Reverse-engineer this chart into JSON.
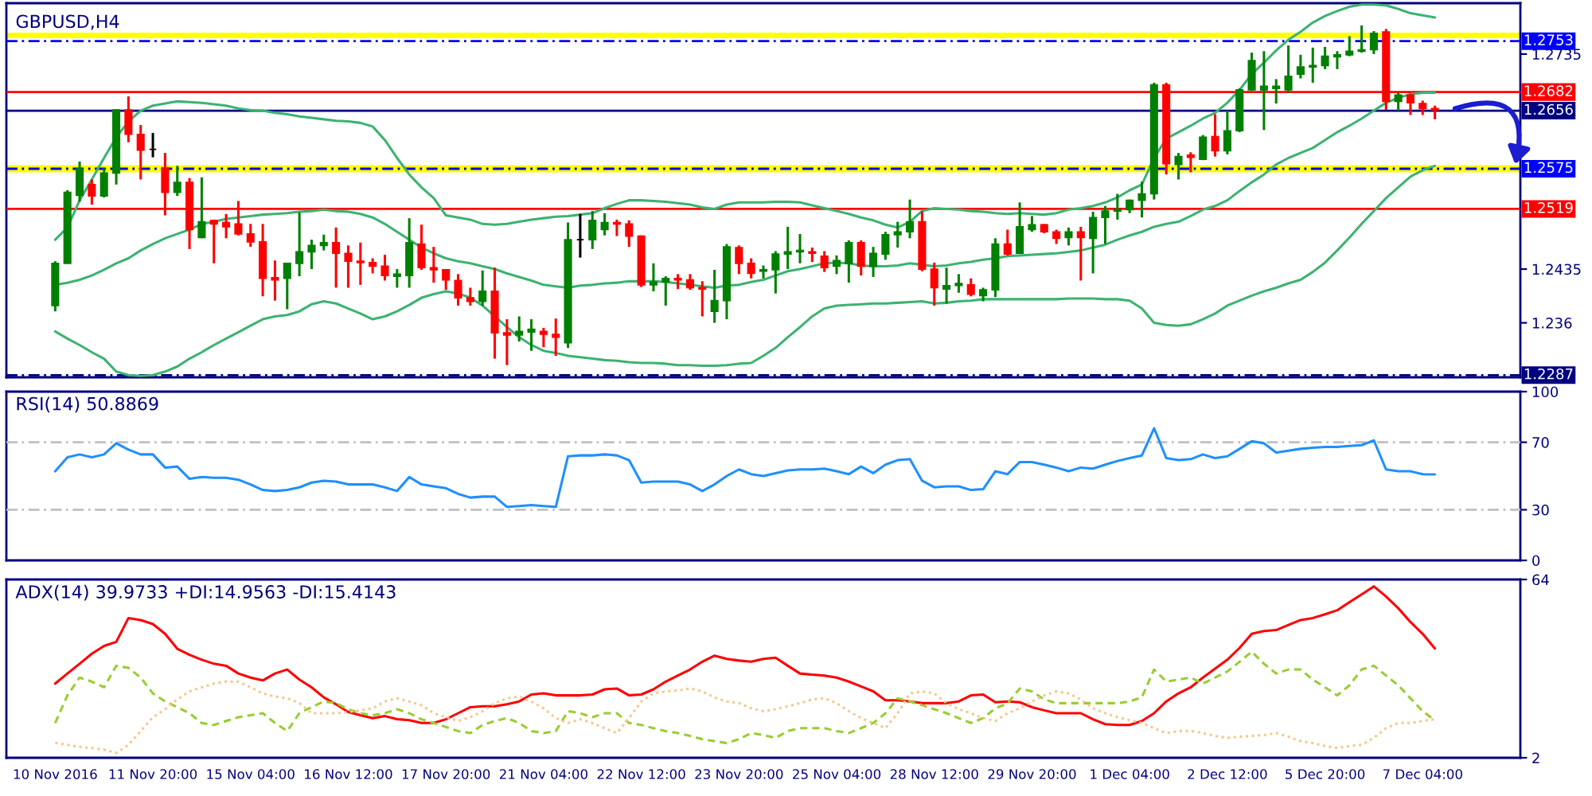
{
  "chart_data": [
    {
      "type": "candlestick",
      "title": "GBPUSD,H4",
      "categories": [
        null,
        null,
        null,
        null,
        null,
        null,
        null,
        null,
        null,
        null,
        null,
        null,
        null,
        null,
        null,
        null,
        null,
        null,
        null,
        null,
        null,
        null,
        null,
        null,
        null,
        null,
        null,
        null,
        null,
        null,
        null,
        null,
        null,
        null,
        null,
        null,
        null,
        null,
        null,
        null,
        null,
        null,
        null,
        null,
        null,
        null,
        null,
        null,
        null,
        null,
        null,
        null,
        null,
        null,
        null,
        null,
        null,
        null,
        null,
        null,
        null,
        null,
        null,
        null,
        null,
        null,
        null,
        null,
        null,
        null,
        null,
        null,
        null,
        null,
        null,
        null,
        null,
        null,
        null,
        null,
        null,
        null,
        null,
        null,
        null,
        null,
        null,
        null,
        null,
        null,
        null,
        null,
        null,
        null,
        null,
        null,
        null,
        null,
        null,
        null,
        null,
        null,
        null,
        null,
        null,
        null,
        null,
        null,
        null,
        null,
        null,
        null,
        null,
        null
      ],
      "ohlc": [
        [
          1.2384,
          1.2446,
          1.2376,
          1.2443
        ],
        [
          1.2443,
          1.2545,
          1.2443,
          1.2542
        ],
        [
          1.2538,
          1.2585,
          1.2529,
          1.2575
        ],
        [
          1.2553,
          1.256,
          1.2525,
          1.2537
        ],
        [
          1.2537,
          1.2576,
          1.2535,
          1.2569
        ],
        [
          1.2569,
          1.2658,
          1.2553,
          1.2657
        ],
        [
          1.2657,
          1.2676,
          1.2612,
          1.2623
        ],
        [
          1.2623,
          1.2636,
          1.256,
          1.2601
        ],
        [
          1.2602,
          1.2625,
          1.2591,
          1.2602
        ],
        [
          1.2576,
          1.2597,
          1.251,
          1.2542
        ],
        [
          1.2542,
          1.2579,
          1.2537,
          1.2556
        ],
        [
          1.2556,
          1.2562,
          1.2463,
          1.249
        ],
        [
          1.2479,
          1.2563,
          1.2478,
          1.2501
        ],
        [
          1.2503,
          1.2504,
          1.2443,
          1.2498
        ],
        [
          1.25,
          1.2512,
          1.2478,
          1.2494
        ],
        [
          1.2498,
          1.253,
          1.2482,
          1.2484
        ],
        [
          1.2484,
          1.2498,
          1.2466,
          1.2473
        ],
        [
          1.2473,
          1.2498,
          1.2397,
          1.2422
        ],
        [
          1.2423,
          1.2447,
          1.2391,
          1.242
        ],
        [
          1.2422,
          1.2444,
          1.2379,
          1.2443
        ],
        [
          1.2443,
          1.2514,
          1.2425,
          1.2459
        ],
        [
          1.2459,
          1.2476,
          1.2435,
          1.2468
        ],
        [
          1.2468,
          1.2483,
          1.2461,
          1.2472
        ],
        [
          1.2472,
          1.2493,
          1.2409,
          1.2457
        ],
        [
          1.2457,
          1.2468,
          1.2409,
          1.2446
        ],
        [
          1.2446,
          1.2472,
          1.2413,
          1.2444
        ],
        [
          1.2444,
          1.245,
          1.2429,
          1.2439
        ],
        [
          1.2439,
          1.2455,
          1.2419,
          1.2426
        ],
        [
          1.2425,
          1.2435,
          1.2409,
          1.2428
        ],
        [
          1.2426,
          1.2506,
          1.2409,
          1.2472
        ],
        [
          1.247,
          1.2497,
          1.2434,
          1.2437
        ],
        [
          1.2437,
          1.2466,
          1.2416,
          1.2434
        ],
        [
          1.2434,
          1.2435,
          1.2406,
          1.242
        ],
        [
          1.2419,
          1.2428,
          1.2384,
          1.2395
        ],
        [
          1.2395,
          1.2409,
          1.2384,
          1.239
        ],
        [
          1.239,
          1.2433,
          1.2384,
          1.2404
        ],
        [
          1.2404,
          1.2437,
          1.231,
          1.2346
        ],
        [
          1.2346,
          1.2365,
          1.2301,
          1.2343
        ],
        [
          1.2343,
          1.2369,
          1.2334,
          1.2348
        ],
        [
          1.2347,
          1.2365,
          1.2321,
          1.2351
        ],
        [
          1.2348,
          1.2353,
          1.2326,
          1.2344
        ],
        [
          1.2344,
          1.2366,
          1.2314,
          1.234
        ],
        [
          1.2332,
          1.25,
          1.2325,
          1.2476
        ],
        [
          1.2476,
          1.2512,
          1.2451,
          1.2476
        ],
        [
          1.2476,
          1.2516,
          1.2463,
          1.2503
        ],
        [
          1.249,
          1.2513,
          1.2482,
          1.25
        ],
        [
          1.25,
          1.2504,
          1.2481,
          1.2498
        ],
        [
          1.2498,
          1.2503,
          1.2466,
          1.2481
        ],
        [
          1.2481,
          1.2482,
          1.241,
          1.2413
        ],
        [
          1.2413,
          1.2443,
          1.2404,
          1.2417
        ],
        [
          1.2417,
          1.2425,
          1.2384,
          1.2422
        ],
        [
          1.2422,
          1.2428,
          1.2407,
          1.242
        ],
        [
          1.242,
          1.2428,
          1.2406,
          1.2409
        ],
        [
          1.2409,
          1.2418,
          1.2369,
          1.2407
        ],
        [
          1.2376,
          1.2434,
          1.236,
          1.2391
        ],
        [
          1.2391,
          1.247,
          1.2365,
          1.2466
        ],
        [
          1.2465,
          1.2468,
          1.2428,
          1.2443
        ],
        [
          1.2443,
          1.245,
          1.2422,
          1.2429
        ],
        [
          1.2432,
          1.244,
          1.2422,
          1.2434
        ],
        [
          1.2434,
          1.246,
          1.2401,
          1.2456
        ],
        [
          1.2456,
          1.2494,
          1.2435,
          1.2459
        ],
        [
          1.2459,
          1.2484,
          1.2443,
          1.2461
        ],
        [
          1.2459,
          1.2465,
          1.2445,
          1.2457
        ],
        [
          1.2453,
          1.246,
          1.2431,
          1.2437
        ],
        [
          1.2439,
          1.2454,
          1.2428,
          1.2447
        ],
        [
          1.2443,
          1.2475,
          1.2416,
          1.2472
        ],
        [
          1.2472,
          1.2475,
          1.2426,
          1.2439
        ],
        [
          1.2439,
          1.2466,
          1.2424,
          1.2457
        ],
        [
          1.2456,
          1.2487,
          1.2448,
          1.2483
        ],
        [
          1.2483,
          1.2501,
          1.2465,
          1.2487
        ],
        [
          1.2487,
          1.2532,
          1.2478,
          1.2501
        ],
        [
          1.2501,
          1.2516,
          1.2432,
          1.2435
        ],
        [
          1.2435,
          1.2444,
          1.2384,
          1.2409
        ],
        [
          1.2407,
          1.2437,
          1.2387,
          1.2412
        ],
        [
          1.2412,
          1.2428,
          1.2402,
          1.2415
        ],
        [
          1.2413,
          1.2422,
          1.2397,
          1.24
        ],
        [
          1.2398,
          1.2409,
          1.239,
          1.2406
        ],
        [
          1.2406,
          1.2478,
          1.2396,
          1.247
        ],
        [
          1.247,
          1.249,
          1.2454,
          1.2456
        ],
        [
          1.2457,
          1.2528,
          1.2456,
          1.2494
        ],
        [
          1.249,
          1.2509,
          1.2487,
          1.2497
        ],
        [
          1.2497,
          1.2498,
          1.2485,
          1.2487
        ],
        [
          1.2487,
          1.249,
          1.247,
          1.2478
        ],
        [
          1.2479,
          1.2493,
          1.2468,
          1.2487
        ],
        [
          1.2487,
          1.2494,
          1.2419,
          1.2479
        ],
        [
          1.2478,
          1.2515,
          1.2429,
          1.2507
        ],
        [
          1.2507,
          1.2523,
          1.247,
          1.2516
        ],
        [
          1.2516,
          1.254,
          1.2504,
          1.2518
        ],
        [
          1.2518,
          1.2532,
          1.2513,
          1.2531
        ],
        [
          1.2531,
          1.2557,
          1.2507,
          1.254
        ],
        [
          1.254,
          1.2695,
          1.2532,
          1.2692
        ],
        [
          1.2692,
          1.2695,
          1.2567,
          1.2582
        ],
        [
          1.2581,
          1.2597,
          1.256,
          1.2592
        ],
        [
          1.2594,
          1.2598,
          1.257,
          1.2591
        ],
        [
          1.2588,
          1.2622,
          1.2587,
          1.2619
        ],
        [
          1.262,
          1.2651,
          1.2592,
          1.26
        ],
        [
          1.26,
          1.2656,
          1.2595,
          1.2628
        ],
        [
          1.2628,
          1.2687,
          1.2626,
          1.2685
        ],
        [
          1.2685,
          1.2737,
          1.2684,
          1.2726
        ],
        [
          1.2685,
          1.2739,
          1.2629,
          1.269
        ],
        [
          1.2687,
          1.27,
          1.2666,
          1.269
        ],
        [
          1.2685,
          1.2747,
          1.2681,
          1.2704
        ],
        [
          1.2707,
          1.2734,
          1.2701,
          1.2717
        ],
        [
          1.2717,
          1.2744,
          1.2695,
          1.2719
        ],
        [
          1.2719,
          1.2745,
          1.2714,
          1.2732
        ],
        [
          1.2731,
          1.2739,
          1.2714,
          1.2734
        ],
        [
          1.2734,
          1.276,
          1.2732,
          1.2739
        ],
        [
          1.2739,
          1.2775,
          1.2737,
          1.2741
        ],
        [
          1.2741,
          1.2767,
          1.2735,
          1.2764
        ],
        [
          1.2766,
          1.277,
          1.2657,
          1.2669
        ],
        [
          1.2669,
          1.2681,
          1.2656,
          1.2678
        ],
        [
          1.2678,
          1.2679,
          1.265,
          1.2667
        ],
        [
          1.2666,
          1.267,
          1.265,
          1.2659
        ],
        [
          1.2659,
          1.2663,
          1.2644,
          1.2657
        ]
      ],
      "colors": [
        "#008000",
        "#008000",
        "#008000",
        "#ff0000",
        "#008000",
        "#008000",
        "#ff0000",
        "#ff0000",
        "#000000",
        "#ff0000",
        "#008000",
        "#ff0000",
        "#008000",
        "#ff0000",
        "#ff0000",
        "#ff0000",
        "#ff0000",
        "#ff0000",
        "#ff0000",
        "#008000",
        "#008000",
        "#008000",
        "#008000",
        "#ff0000",
        "#ff0000",
        "#ff0000",
        "#ff0000",
        "#ff0000",
        "#008000",
        "#008000",
        "#ff0000",
        "#ff0000",
        "#ff0000",
        "#ff0000",
        "#ff0000",
        "#008000",
        "#ff0000",
        "#ff0000",
        "#008000",
        "#008000",
        "#ff0000",
        "#ff0000",
        "#008000",
        "#000000",
        "#008000",
        "#008000",
        "#ff0000",
        "#ff0000",
        "#ff0000",
        "#008000",
        "#008000",
        "#ff0000",
        "#ff0000",
        "#ff0000",
        "#008000",
        "#008000",
        "#ff0000",
        "#ff0000",
        "#008000",
        "#008000",
        "#008000",
        "#008000",
        "#ff0000",
        "#ff0000",
        "#008000",
        "#008000",
        "#ff0000",
        "#008000",
        "#008000",
        "#008000",
        "#008000",
        "#ff0000",
        "#ff0000",
        "#008000",
        "#008000",
        "#ff0000",
        "#008000",
        "#008000",
        "#ff0000",
        "#008000",
        "#008000",
        "#ff0000",
        "#ff0000",
        "#008000",
        "#ff0000",
        "#008000",
        "#008000",
        "#008000",
        "#008000",
        "#008000",
        "#008000",
        "#ff0000",
        "#008000",
        "#ff0000",
        "#008000",
        "#ff0000",
        "#008000",
        "#008000",
        "#008000",
        "#008000",
        "#008000",
        "#008000",
        "#008000",
        "#008000",
        "#008000",
        "#008000",
        "#008000",
        "#008000",
        "#008000",
        "#ff0000",
        "#008000",
        "#ff0000",
        "#ff0000",
        "#ff0000"
      ],
      "series": [
        {
          "type": "line",
          "color": "#3cb371",
          "values": [
            1.2476,
            1.2493,
            1.2531,
            1.256,
            1.259,
            1.2619,
            1.2641,
            1.2656,
            1.2663,
            1.2666,
            1.2669,
            1.2668,
            1.2667,
            1.2665,
            1.2663,
            1.2659,
            1.2657,
            1.2656,
            1.2653,
            1.2651,
            1.2648,
            1.2646,
            1.2644,
            1.2642,
            1.2641,
            1.2639,
            1.2634,
            1.2615,
            1.259,
            1.2567,
            1.2549,
            1.2534,
            1.251,
            1.2507,
            1.2504,
            1.2498,
            1.2497,
            1.2498,
            1.2501,
            1.2504,
            1.2506,
            1.2508,
            1.2509,
            1.2511,
            1.2513,
            1.252,
            1.2526,
            1.2531,
            1.2531,
            1.253,
            1.2529,
            1.2527,
            1.2525,
            1.2521,
            1.2519,
            1.2525,
            1.2528,
            1.2528,
            1.2528,
            1.2529,
            1.2529,
            1.2528,
            1.2524,
            1.252,
            1.2516,
            1.2512,
            1.2507,
            1.2503,
            1.2497,
            1.2493,
            1.2501,
            1.2516,
            1.252,
            1.2519,
            1.2518,
            1.2516,
            1.2515,
            1.2513,
            1.2512,
            1.2513,
            1.2512,
            1.2511,
            1.2513,
            1.2518,
            1.252,
            1.2523,
            1.2528,
            1.2535,
            1.2545,
            1.2553,
            1.259,
            1.2617,
            1.2626,
            1.2635,
            1.2645,
            1.2653,
            1.2667,
            1.2685,
            1.2707,
            1.2723,
            1.274,
            1.2755,
            1.2766,
            1.2779,
            1.2788,
            1.2795,
            1.2801,
            1.2804,
            1.2804,
            1.2803,
            1.2798,
            1.2792,
            1.2789,
            1.2786
          ]
        },
        {
          "type": "line",
          "color": "#3cb371",
          "values": [
            1.2413,
            1.2416,
            1.242,
            1.2426,
            1.2434,
            1.2443,
            1.245,
            1.2461,
            1.247,
            1.2478,
            1.2484,
            1.249,
            1.2498,
            1.2501,
            1.2505,
            1.2507,
            1.2509,
            1.2511,
            1.2512,
            1.2513,
            1.2515,
            1.2516,
            1.2518,
            1.2516,
            1.2515,
            1.2512,
            1.2507,
            1.2498,
            1.2487,
            1.2476,
            1.2465,
            1.2457,
            1.245,
            1.2446,
            1.2443,
            1.2439,
            1.2435,
            1.2429,
            1.2424,
            1.2419,
            1.2413,
            1.2411,
            1.2409,
            1.2412,
            1.2413,
            1.2415,
            1.2416,
            1.2418,
            1.2418,
            1.2418,
            1.2417,
            1.2415,
            1.2413,
            1.2411,
            1.2409,
            1.2412,
            1.2413,
            1.2417,
            1.242,
            1.2426,
            1.2432,
            1.2435,
            1.2439,
            1.2443,
            1.2444,
            1.2443,
            1.244,
            1.2439,
            1.2439,
            1.244,
            1.2443,
            1.2441,
            1.2439,
            1.244,
            1.2443,
            1.2445,
            1.2448,
            1.245,
            1.2453,
            1.2454,
            1.2455,
            1.2456,
            1.2457,
            1.2459,
            1.2461,
            1.2465,
            1.2469,
            1.2476,
            1.2482,
            1.2487,
            1.2494,
            1.2498,
            1.2501,
            1.2509,
            1.2518,
            1.2523,
            1.2531,
            1.2544,
            1.2556,
            1.2567,
            1.2581,
            1.259,
            1.2597,
            1.2604,
            1.2615,
            1.2626,
            1.2635,
            1.2645,
            1.2656,
            1.2667,
            1.2674,
            1.2679,
            1.2681,
            1.2681
          ]
        },
        {
          "type": "line",
          "color": "#3cb371",
          "values": [
            1.2348,
            1.2338,
            1.2329,
            1.2319,
            1.231,
            1.2292,
            1.2287,
            1.2286,
            1.2287,
            1.2292,
            1.2299,
            1.231,
            1.2319,
            1.2329,
            1.2338,
            1.2347,
            1.2356,
            1.2365,
            1.2369,
            1.2371,
            1.2376,
            1.2386,
            1.239,
            1.2387,
            1.238,
            1.2373,
            1.2365,
            1.2369,
            1.2376,
            1.2385,
            1.2395,
            1.24,
            1.2404,
            1.2401,
            1.2395,
            1.2384,
            1.2369,
            1.2354,
            1.234,
            1.2329,
            1.2321,
            1.2318,
            1.2314,
            1.2312,
            1.231,
            1.2308,
            1.2307,
            1.2305,
            1.2304,
            1.2304,
            1.2303,
            1.2301,
            1.2301,
            1.23,
            1.23,
            1.2301,
            1.2303,
            1.2304,
            1.2314,
            1.2325,
            1.234,
            1.2354,
            1.2369,
            1.238,
            1.2384,
            1.2385,
            1.2386,
            1.2387,
            1.2387,
            1.2388,
            1.2389,
            1.239,
            1.2387,
            1.2388,
            1.239,
            1.2391,
            1.2393,
            1.2393,
            1.2393,
            1.2393,
            1.2393,
            1.2393,
            1.2393,
            1.2394,
            1.2394,
            1.2394,
            1.2393,
            1.2393,
            1.2391,
            1.238,
            1.236,
            1.2357,
            1.2356,
            1.2358,
            1.2365,
            1.2373,
            1.2384,
            1.2391,
            1.2398,
            1.2404,
            1.2409,
            1.2415,
            1.242,
            1.2431,
            1.2444,
            1.2461,
            1.2479,
            1.2498,
            1.2516,
            1.2534,
            1.2549,
            1.2564,
            1.2573,
            1.2579
          ]
        }
      ],
      "ylim": [
        1.2284,
        1.2806
      ],
      "yticks": [
        1.236,
        1.2435,
        1.2735
      ],
      "ref_lines": [
        {
          "axis": "y",
          "value": 1.2753,
          "label": "1.2753",
          "color": "#0000ff",
          "line_style": "dashed"
        },
        {
          "axis": "y",
          "value": 1.2682,
          "label": "1.2682",
          "color": "#ff0000",
          "line_style": "solid"
        },
        {
          "axis": "y",
          "value": 1.2656,
          "label": "1.2656",
          "color": "#000080",
          "line_style": "solid"
        },
        {
          "axis": "y",
          "value": 1.2575,
          "label": "1.2575",
          "color": "#0000ff",
          "line_style": "dashed"
        },
        {
          "axis": "y",
          "value": 1.2519,
          "label": "1.2519",
          "color": "#ff0000",
          "line_style": "solid"
        },
        {
          "axis": "y",
          "value": 1.2287,
          "label": "1.2287",
          "color": "#000080",
          "line_style": "dashed"
        }
      ],
      "bands": [
        {
          "axis": "y",
          "from": 1.2757,
          "to": 1.2765,
          "color": "#ffff00"
        },
        {
          "axis": "y",
          "from": 1.257,
          "to": 1.258,
          "color": "#ffff00"
        }
      ],
      "tick_labels": "y"
    },
    {
      "type": "line",
      "title": "RSI(14) 50.8869",
      "categories": [
        null,
        null,
        null,
        null,
        null,
        null,
        null,
        null,
        null,
        null,
        null,
        null,
        null,
        null,
        null,
        null,
        null,
        null,
        null,
        null,
        null,
        null,
        null,
        null,
        null,
        null,
        null,
        null,
        null,
        null,
        null,
        null,
        null,
        null,
        null,
        null,
        null,
        null,
        null,
        null,
        null,
        null,
        null,
        null,
        null,
        null,
        null,
        null,
        null,
        null,
        null,
        null,
        null,
        null,
        null,
        null,
        null,
        null,
        null,
        null,
        null,
        null,
        null,
        null,
        null,
        null,
        null,
        null,
        null,
        null,
        null,
        null,
        null,
        null,
        null,
        null,
        null,
        null,
        null,
        null,
        null,
        null,
        null,
        null,
        null,
        null,
        null,
        null,
        null,
        null,
        null,
        null,
        null,
        null,
        null,
        null,
        null,
        null,
        null,
        null,
        null,
        null,
        null,
        null,
        null,
        null,
        null,
        null,
        null,
        null,
        null,
        null,
        null,
        null
      ],
      "series": [
        {
          "color": "#1e90ff",
          "values": [
            52.8,
            61.1,
            62.8,
            61.1,
            62.8,
            69.4,
            65.6,
            62.8,
            62.8,
            55.0,
            55.6,
            48.3,
            49.4,
            48.9,
            48.9,
            47.8,
            45.0,
            41.7,
            41.1,
            41.7,
            43.3,
            46.1,
            47.2,
            46.7,
            45.0,
            45.0,
            45.0,
            43.3,
            41.1,
            49.4,
            45.0,
            43.9,
            42.8,
            39.4,
            37.2,
            37.8,
            37.8,
            31.7,
            32.2,
            32.8,
            32.2,
            31.7,
            61.7,
            62.2,
            62.2,
            62.8,
            62.2,
            59.4,
            46.1,
            46.7,
            46.7,
            46.7,
            45.0,
            41.1,
            45.0,
            50.0,
            53.9,
            51.1,
            50.0,
            51.7,
            53.3,
            53.9,
            53.9,
            54.4,
            52.8,
            51.1,
            55.6,
            51.7,
            56.7,
            59.4,
            60.0,
            47.2,
            43.3,
            43.9,
            43.9,
            41.7,
            42.2,
            52.8,
            51.1,
            58.3,
            58.3,
            56.7,
            55.0,
            52.8,
            55.0,
            54.4,
            56.7,
            58.9,
            60.6,
            62.2,
            78.3,
            60.6,
            59.4,
            60.0,
            62.8,
            60.6,
            61.7,
            66.1,
            70.6,
            69.4,
            63.9,
            65.0,
            66.1,
            66.7,
            67.2,
            67.2,
            67.8,
            68.3,
            71.1,
            53.9,
            52.8,
            52.8,
            51.1,
            50.9
          ]
        }
      ],
      "ylim": [
        0,
        100
      ],
      "yticks": [
        0,
        30,
        70,
        100
      ],
      "ref_lines": [
        {
          "axis": "y",
          "value": 70,
          "color": "#c0c0c0",
          "line_style": "dashed"
        },
        {
          "axis": "y",
          "value": 30,
          "color": "#c0c0c0",
          "line_style": "dashed"
        }
      ],
      "tick_labels": "y"
    },
    {
      "type": "line",
      "title": "ADX(14) 39.9733 +DI:14.9563 -DI:15.4143",
      "categories": [
        "10 Nov 2016",
        null,
        null,
        null,
        null,
        null,
        null,
        null,
        "11 Nov 20:00",
        null,
        null,
        null,
        null,
        null,
        null,
        null,
        "15 Nov 04:00",
        null,
        null,
        null,
        null,
        null,
        null,
        null,
        "16 Nov 12:00",
        null,
        null,
        null,
        null,
        null,
        null,
        null,
        "17 Nov 20:00",
        null,
        null,
        null,
        null,
        null,
        null,
        null,
        "21 Nov 04:00",
        null,
        null,
        null,
        null,
        null,
        null,
        null,
        "22 Nov 12:00",
        null,
        null,
        null,
        null,
        null,
        null,
        null,
        "23 Nov 20:00",
        null,
        null,
        null,
        null,
        null,
        null,
        null,
        "25 Nov 04:00",
        null,
        null,
        null,
        null,
        null,
        null,
        null,
        "28 Nov 12:00",
        null,
        null,
        null,
        null,
        null,
        null,
        null,
        "29 Nov 20:00",
        null,
        null,
        null,
        null,
        null,
        null,
        null,
        "1 Dec 04:00",
        null,
        null,
        null,
        null,
        null,
        null,
        null,
        "2 Dec 12:00",
        null,
        null,
        null,
        null,
        null,
        null,
        null,
        "5 Dec 20:00",
        null,
        null,
        null,
        null,
        null,
        null,
        null,
        "7 Dec 04:00",
        null
      ],
      "series": [
        {
          "color": "#ff0000",
          "line_style": "solid",
          "values": [
            27.8,
            31.3,
            34.7,
            38.2,
            40.9,
            42.3,
            50.6,
            49.9,
            48.5,
            45.1,
            39.9,
            37.8,
            36.1,
            34.7,
            34.0,
            31.3,
            29.9,
            28.9,
            31.3,
            32.7,
            29.2,
            26.5,
            23.0,
            20.6,
            17.9,
            16.8,
            15.8,
            16.5,
            15.4,
            15.1,
            14.1,
            14.1,
            15.4,
            17.5,
            19.6,
            19.9,
            19.9,
            20.6,
            21.6,
            24.0,
            24.4,
            23.7,
            23.7,
            23.7,
            24.0,
            25.8,
            26.1,
            23.7,
            24.0,
            25.8,
            28.5,
            30.6,
            32.7,
            35.4,
            37.5,
            36.4,
            35.8,
            35.4,
            36.4,
            36.8,
            34.0,
            31.3,
            30.9,
            30.6,
            29.9,
            28.5,
            26.8,
            25.1,
            22.0,
            22.0,
            21.6,
            21.0,
            21.0,
            21.0,
            21.6,
            23.7,
            24.0,
            21.3,
            21.6,
            21.3,
            19.6,
            18.5,
            17.5,
            17.5,
            17.5,
            15.4,
            13.7,
            13.4,
            13.4,
            14.8,
            17.5,
            21.6,
            24.4,
            26.5,
            29.9,
            33.0,
            36.1,
            40.2,
            45.1,
            46.1,
            46.4,
            48.2,
            49.9,
            50.6,
            51.9,
            53.3,
            56.1,
            58.8,
            61.6,
            58.1,
            54.0,
            49.2,
            45.1,
            40.0
          ]
        },
        {
          "color": "#9acd32",
          "line_style": "dashed",
          "values": [
            14.1,
            23.7,
            29.9,
            28.5,
            26.5,
            34.0,
            33.3,
            29.9,
            24.4,
            21.6,
            19.6,
            17.5,
            14.1,
            13.4,
            14.8,
            16.1,
            16.8,
            17.5,
            14.1,
            11.3,
            17.5,
            19.6,
            21.6,
            21.0,
            18.9,
            17.5,
            16.8,
            17.5,
            18.9,
            17.5,
            15.4,
            14.1,
            12.7,
            11.3,
            10.6,
            13.4,
            14.8,
            15.8,
            14.1,
            11.3,
            10.6,
            11.3,
            18.2,
            17.5,
            16.1,
            17.5,
            17.5,
            14.1,
            13.4,
            12.3,
            11.3,
            10.6,
            9.6,
            8.5,
            7.8,
            7.1,
            8.5,
            10.6,
            9.9,
            8.9,
            11.3,
            12.3,
            12.3,
            12.3,
            11.3,
            10.6,
            12.3,
            14.1,
            17.5,
            22.7,
            21.6,
            20.3,
            18.9,
            17.5,
            15.8,
            14.1,
            15.8,
            19.2,
            20.9,
            26.1,
            25.1,
            22.3,
            21.0,
            21.0,
            21.0,
            21.0,
            21.0,
            21.0,
            21.6,
            23.0,
            32.7,
            28.5,
            29.2,
            29.9,
            27.8,
            29.9,
            32.0,
            35.4,
            38.9,
            34.7,
            31.3,
            32.7,
            32.7,
            29.2,
            26.5,
            23.7,
            27.2,
            32.7,
            34.0,
            30.6,
            27.2,
            22.7,
            18.2,
            15.0
          ]
        },
        {
          "color": "#f5c88c",
          "line_style": "dotted",
          "values": [
            7.2,
            6.5,
            5.8,
            5.4,
            4.8,
            3.7,
            6.5,
            11.3,
            16.1,
            18.9,
            22.3,
            25.1,
            26.5,
            27.8,
            28.5,
            28.5,
            26.5,
            24.4,
            23.3,
            22.7,
            21.0,
            17.5,
            17.5,
            17.5,
            17.9,
            18.5,
            19.2,
            21.6,
            22.7,
            21.6,
            20.3,
            17.5,
            16.1,
            14.8,
            16.1,
            18.2,
            21.0,
            22.7,
            23.3,
            21.6,
            19.2,
            15.8,
            14.1,
            15.4,
            14.1,
            12.3,
            10.6,
            15.8,
            21.6,
            24.4,
            25.1,
            25.4,
            26.1,
            25.1,
            23.0,
            21.6,
            21.0,
            19.2,
            18.2,
            18.9,
            19.9,
            21.0,
            22.3,
            22.7,
            21.0,
            18.2,
            15.8,
            14.1,
            12.3,
            17.5,
            24.4,
            25.1,
            24.4,
            21.0,
            18.9,
            17.5,
            15.8,
            14.8,
            17.5,
            19.2,
            21.6,
            23.7,
            25.1,
            24.4,
            22.3,
            19.2,
            17.5,
            16.1,
            15.1,
            14.1,
            12.3,
            10.6,
            11.3,
            11.3,
            10.6,
            9.6,
            8.9,
            9.3,
            9.6,
            9.9,
            10.6,
            9.3,
            7.8,
            7.1,
            6.1,
            5.4,
            6.1,
            6.5,
            8.9,
            12.3,
            14.1,
            14.1,
            14.8,
            15.4
          ]
        }
      ],
      "ylim": [
        2,
        64
      ],
      "yticks": [
        2,
        64
      ]
    }
  ]
}
